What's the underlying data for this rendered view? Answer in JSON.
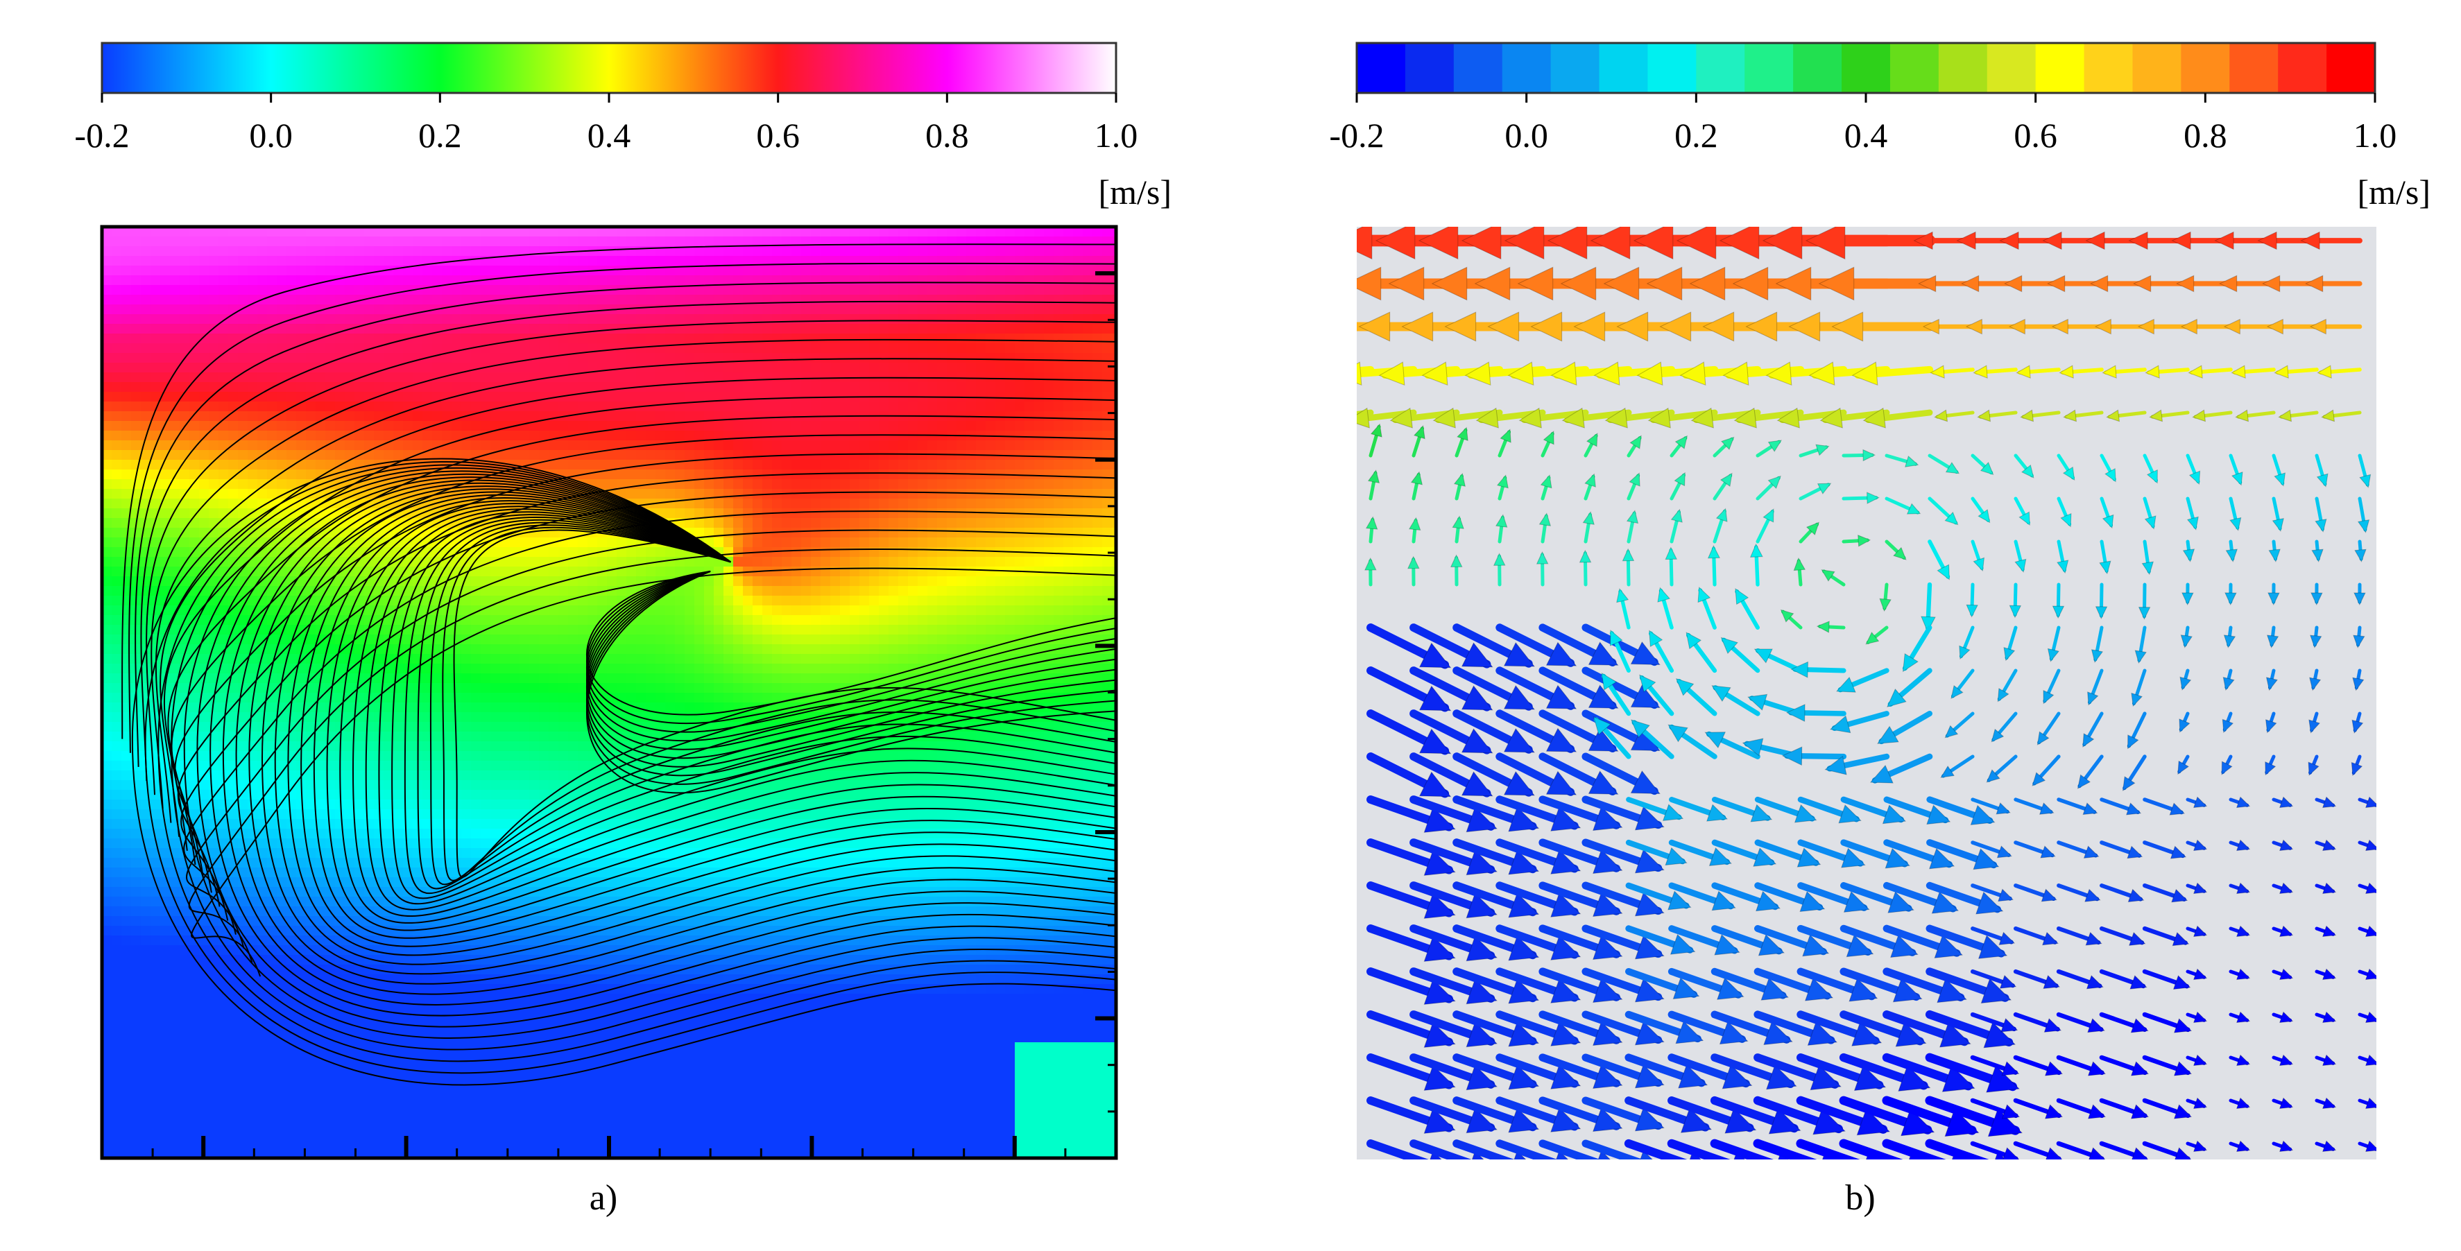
{
  "chart_data": [
    {
      "type": "heatmap",
      "panel_label": "a)",
      "colorbar": {
        "ticks": [
          "-0.2",
          "0.0",
          "0.2",
          "0.4",
          "0.6",
          "0.8",
          "1.0"
        ],
        "tick_values": [
          -0.2,
          0.0,
          0.2,
          0.4,
          0.6,
          0.8,
          1.0
        ],
        "range": [
          -0.2,
          1.0
        ],
        "unit": "[m/s]",
        "style": "continuous",
        "colors": [
          "#0a3cff",
          "#00ffff",
          "#00ff2a",
          "#ffff00",
          "#ff1a1a",
          "#ff00ff",
          "#ffffff"
        ]
      },
      "overlay": "streamlines",
      "description_values": {
        "top_band_velocity": 0.75,
        "vortex_core_velocity": 0.15,
        "bottom_region_velocity": -0.15
      }
    },
    {
      "type": "heatmap",
      "panel_label": "b)",
      "colorbar": {
        "ticks": [
          "-0.2",
          "0.0",
          "0.2",
          "0.4",
          "0.6",
          "0.8",
          "1.0"
        ],
        "tick_values": [
          -0.2,
          0.0,
          0.2,
          0.4,
          0.6,
          0.8,
          1.0
        ],
        "range": [
          -0.2,
          1.0
        ],
        "unit": "[m/s]",
        "style": "discrete",
        "levels": 19,
        "colors": [
          "#0000ff",
          "#0a2af0",
          "#0d5cf2",
          "#0a86f2",
          "#0aa8f0",
          "#00d4f0",
          "#00f0f0",
          "#1ff0c0",
          "#1ff08a",
          "#22e050",
          "#2ed11a",
          "#66dd1a",
          "#a8e01a",
          "#d8e820",
          "#ffff00",
          "#ffd21a",
          "#ffb31a",
          "#ff8c1a",
          "#ff5a1a",
          "#ff2a1a",
          "#ff0000"
        ]
      },
      "overlay": "vector_arrows",
      "background": "#dfe1e6"
    }
  ]
}
